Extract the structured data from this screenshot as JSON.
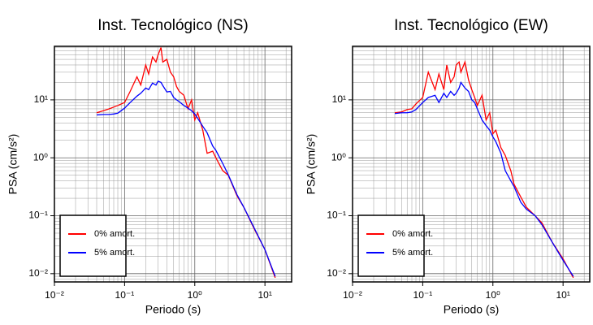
{
  "chart_data": [
    {
      "type": "line",
      "title": "Inst. Tecnológico (NS)",
      "xlabel": "Periodo (s)",
      "ylabel": "PSA (cm/s²)",
      "xscale": "log",
      "yscale": "log",
      "xlim": [
        0.01,
        24
      ],
      "ylim": [
        0.0072,
        84
      ],
      "xticks": [
        {
          "value": 0.01,
          "label": "10⁻²"
        },
        {
          "value": 0.1,
          "label": "10⁻¹"
        },
        {
          "value": 1,
          "label": "10⁰"
        },
        {
          "value": 10,
          "label": "10¹"
        }
      ],
      "yticks": [
        {
          "value": 0.01,
          "label": "10⁻²"
        },
        {
          "value": 0.1,
          "label": "10⁻¹"
        },
        {
          "value": 1,
          "label": "10⁰"
        },
        {
          "value": 10,
          "label": "10¹"
        }
      ],
      "xminorticks": [
        0.02,
        0.03,
        0.04,
        0.05,
        0.06,
        0.07,
        0.08,
        0.09,
        0.2,
        0.3,
        0.4,
        0.5,
        0.6,
        0.7,
        0.8,
        0.9,
        2,
        3,
        4,
        5,
        6,
        7,
        8,
        9,
        20
      ],
      "yminorticks": [
        0.008,
        0.009,
        0.02,
        0.03,
        0.04,
        0.05,
        0.06,
        0.07,
        0.08,
        0.09,
        0.2,
        0.3,
        0.4,
        0.5,
        0.6,
        0.7,
        0.8,
        0.9,
        2,
        3,
        4,
        5,
        6,
        7,
        8,
        9,
        20,
        30,
        40,
        50,
        60,
        70,
        80
      ],
      "grid": true,
      "legend": "lower left",
      "x": [
        0.04,
        0.05,
        0.06,
        0.07,
        0.08,
        0.1,
        0.12,
        0.15,
        0.17,
        0.2,
        0.22,
        0.25,
        0.28,
        0.3,
        0.33,
        0.35,
        0.4,
        0.45,
        0.5,
        0.55,
        0.6,
        0.7,
        0.8,
        0.9,
        1.0,
        1.1,
        1.3,
        1.5,
        1.8,
        2,
        2.5,
        3,
        4,
        5,
        7,
        10,
        14
      ],
      "series": [
        {
          "name": "0% amort.",
          "color": "#ff0000",
          "values": [
            6.0,
            6.5,
            7,
            7.5,
            8,
            9,
            14,
            25,
            18,
            40,
            28,
            55,
            45,
            60,
            80,
            45,
            50,
            30,
            25,
            17,
            14,
            12,
            7,
            10,
            4.5,
            6,
            3,
            1.2,
            1.3,
            1.0,
            0.6,
            0.5,
            0.22,
            0.14,
            0.06,
            0.026,
            0.0085
          ]
        },
        {
          "name": "5% amort.",
          "color": "#0000ff",
          "values": [
            5.5,
            5.6,
            5.6,
            5.7,
            5.9,
            7.2,
            9,
            11.6,
            13,
            16,
            15,
            19.5,
            18,
            21,
            20,
            17.7,
            13.7,
            14,
            11,
            10,
            9.3,
            8,
            7.2,
            6.5,
            5.7,
            4.8,
            3.5,
            2.7,
            1.6,
            1.34,
            0.8,
            0.51,
            0.23,
            0.14,
            0.062,
            0.026,
            0.009
          ]
        }
      ]
    },
    {
      "type": "line",
      "title": "Inst. Tecnológico (EW)",
      "xlabel": "Periodo (s)",
      "ylabel": "PSA (cm/s²)",
      "xscale": "log",
      "yscale": "log",
      "xlim": [
        0.01,
        24
      ],
      "ylim": [
        0.0072,
        84
      ],
      "xticks": [
        {
          "value": 0.01,
          "label": "10⁻²"
        },
        {
          "value": 0.1,
          "label": "10⁻¹"
        },
        {
          "value": 1,
          "label": "10⁰"
        },
        {
          "value": 10,
          "label": "10¹"
        }
      ],
      "yticks": [
        {
          "value": 0.01,
          "label": "10⁻²"
        },
        {
          "value": 0.1,
          "label": "10⁻¹"
        },
        {
          "value": 1,
          "label": "10⁰"
        },
        {
          "value": 10,
          "label": "10¹"
        }
      ],
      "xminorticks": [
        0.02,
        0.03,
        0.04,
        0.05,
        0.06,
        0.07,
        0.08,
        0.09,
        0.2,
        0.3,
        0.4,
        0.5,
        0.6,
        0.7,
        0.8,
        0.9,
        2,
        3,
        4,
        5,
        6,
        7,
        8,
        9,
        20
      ],
      "yminorticks": [
        0.008,
        0.009,
        0.02,
        0.03,
        0.04,
        0.05,
        0.06,
        0.07,
        0.08,
        0.09,
        0.2,
        0.3,
        0.4,
        0.5,
        0.6,
        0.7,
        0.8,
        0.9,
        2,
        3,
        4,
        5,
        6,
        7,
        8,
        9,
        20,
        30,
        40,
        50,
        60,
        70,
        80
      ],
      "grid": true,
      "legend": "lower left",
      "x": [
        0.04,
        0.05,
        0.06,
        0.07,
        0.08,
        0.1,
        0.12,
        0.15,
        0.17,
        0.2,
        0.22,
        0.25,
        0.28,
        0.3,
        0.33,
        0.35,
        0.4,
        0.45,
        0.5,
        0.55,
        0.6,
        0.7,
        0.8,
        0.9,
        1.0,
        1.1,
        1.3,
        1.5,
        1.8,
        2,
        2.5,
        3,
        4,
        5,
        7,
        10,
        14
      ],
      "series": [
        {
          "name": "0% amort.",
          "color": "#ff0000",
          "values": [
            6,
            6.2,
            6.8,
            7,
            8.5,
            11,
            30,
            15,
            28,
            15,
            40,
            20,
            25,
            40,
            45,
            30,
            45,
            22,
            15,
            11,
            8,
            12,
            4.5,
            6,
            2.6,
            3,
            1.5,
            1.1,
            0.6,
            0.35,
            0.21,
            0.14,
            0.1,
            0.075,
            0.035,
            0.018,
            0.0085
          ]
        },
        {
          "name": "5% amort.",
          "color": "#0000ff",
          "values": [
            5.8,
            6,
            6,
            6.2,
            6.8,
            9,
            11,
            12,
            9,
            13,
            11,
            14,
            12,
            13,
            16,
            20,
            16,
            14,
            10,
            9,
            7,
            4.5,
            3.6,
            3,
            2.3,
            1.9,
            1.2,
            0.6,
            0.4,
            0.32,
            0.17,
            0.13,
            0.1,
            0.07,
            0.035,
            0.017,
            0.009
          ]
        }
      ]
    }
  ]
}
